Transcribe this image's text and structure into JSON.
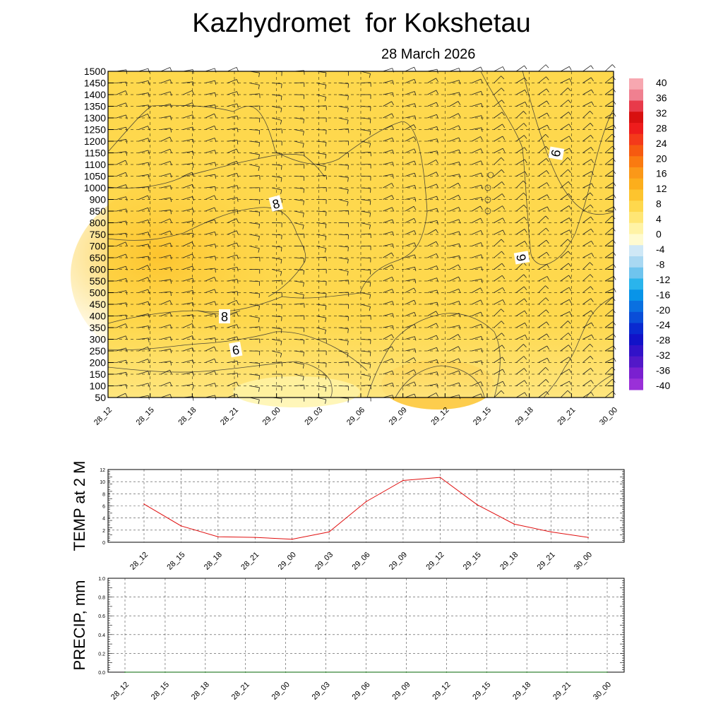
{
  "title": "Kazhydromet  for Kokshetau",
  "subtitle": "28 March 2026",
  "time_labels": [
    "28_12",
    "28_15",
    "28_18",
    "28_21",
    "29_00",
    "29_03",
    "29_06",
    "29_09",
    "29_12",
    "29_15",
    "29_18",
    "29_21",
    "30_00"
  ],
  "colors": {
    "field_main": "#fed84d",
    "field_warm": "#fdc42e",
    "field_cool": "#ffe98a",
    "temp_line": "#e01010",
    "contour": "#333333"
  },
  "chart_data": [
    {
      "type": "heatmap",
      "title": "Kazhydromet  for Kokshetau",
      "subtitle": "28 March 2026",
      "x_categories": [
        "28_12",
        "28_15",
        "28_18",
        "28_21",
        "29_00",
        "29_03",
        "29_06",
        "29_09",
        "29_12",
        "29_15",
        "29_18",
        "29_21",
        "30_00"
      ],
      "y_levels": [
        50,
        100,
        150,
        200,
        250,
        300,
        350,
        400,
        450,
        500,
        550,
        600,
        650,
        700,
        750,
        800,
        850,
        900,
        1000,
        1050,
        1100,
        1150,
        1200,
        1250,
        1300,
        1350,
        1400,
        1450,
        1500
      ],
      "ylim": [
        50,
        1500
      ],
      "grid": true,
      "contour_labels": [
        {
          "text": "8",
          "x": "29_00",
          "y": 900
        },
        {
          "text": "8",
          "x": "28_21",
          "y": 400
        },
        {
          "text": "6",
          "x": "28_21",
          "y": 250
        },
        {
          "text": "9",
          "x": "29_18",
          "y": 650
        },
        {
          "text": "9",
          "x": "29_21",
          "y": 1150
        }
      ],
      "colorbar": {
        "ticks": [
          40,
          36,
          32,
          28,
          24,
          20,
          16,
          12,
          8,
          4,
          0,
          -4,
          -8,
          -12,
          -16,
          -20,
          -24,
          -28,
          -32,
          -36,
          -40
        ],
        "range": [
          -40,
          40
        ],
        "colors": [
          "#f7a7b0",
          "#f08090",
          "#e83a4a",
          "#d81010",
          "#ee1c1c",
          "#f43a1a",
          "#f65a10",
          "#fa7a10",
          "#fb9818",
          "#fcae1c",
          "#fdc42e",
          "#fed84d",
          "#ffe675",
          "#fff3a6",
          "#fffbd0",
          "#cfe8f6",
          "#a9d8f2",
          "#6fc4ee",
          "#2ab4ec",
          "#0894e8",
          "#0a70e0",
          "#0a4ed8",
          "#0a2ad0",
          "#1212c8",
          "#3212c8",
          "#5218c8",
          "#7a20d0",
          "#9a30d8"
        ]
      }
    },
    {
      "type": "line",
      "ylabel": "TEMP at 2 M",
      "categories": [
        "28_12",
        "28_15",
        "28_18",
        "28_21",
        "29_00",
        "29_03",
        "29_06",
        "29_09",
        "29_12",
        "29_15",
        "29_18",
        "29_21",
        "30_00"
      ],
      "series": [
        {
          "values": [
            6.3,
            2.7,
            0.9,
            0.8,
            0.5,
            1.7,
            6.7,
            10.2,
            10.7,
            6.2,
            3.0,
            1.7,
            0.8
          ]
        }
      ],
      "ylim": [
        0,
        12
      ],
      "yticks": [
        0,
        2,
        4,
        6,
        8,
        10,
        12
      ],
      "grid": true
    },
    {
      "type": "line",
      "ylabel": "PRECIP, mm",
      "categories": [
        "28_12",
        "28_15",
        "28_18",
        "28_21",
        "29_00",
        "29_03",
        "29_06",
        "29_09",
        "29_12",
        "29_15",
        "29_18",
        "29_21",
        "30_00"
      ],
      "series": [
        {
          "values": [
            0,
            0,
            0,
            0,
            0,
            0,
            0,
            0,
            0,
            0,
            0,
            0,
            0
          ]
        }
      ],
      "ylim": [
        0,
        1.0
      ],
      "yticks": [
        "0.0",
        "0.2",
        "0.4",
        "0.6",
        "0.8",
        "1.0"
      ],
      "grid": true
    }
  ]
}
